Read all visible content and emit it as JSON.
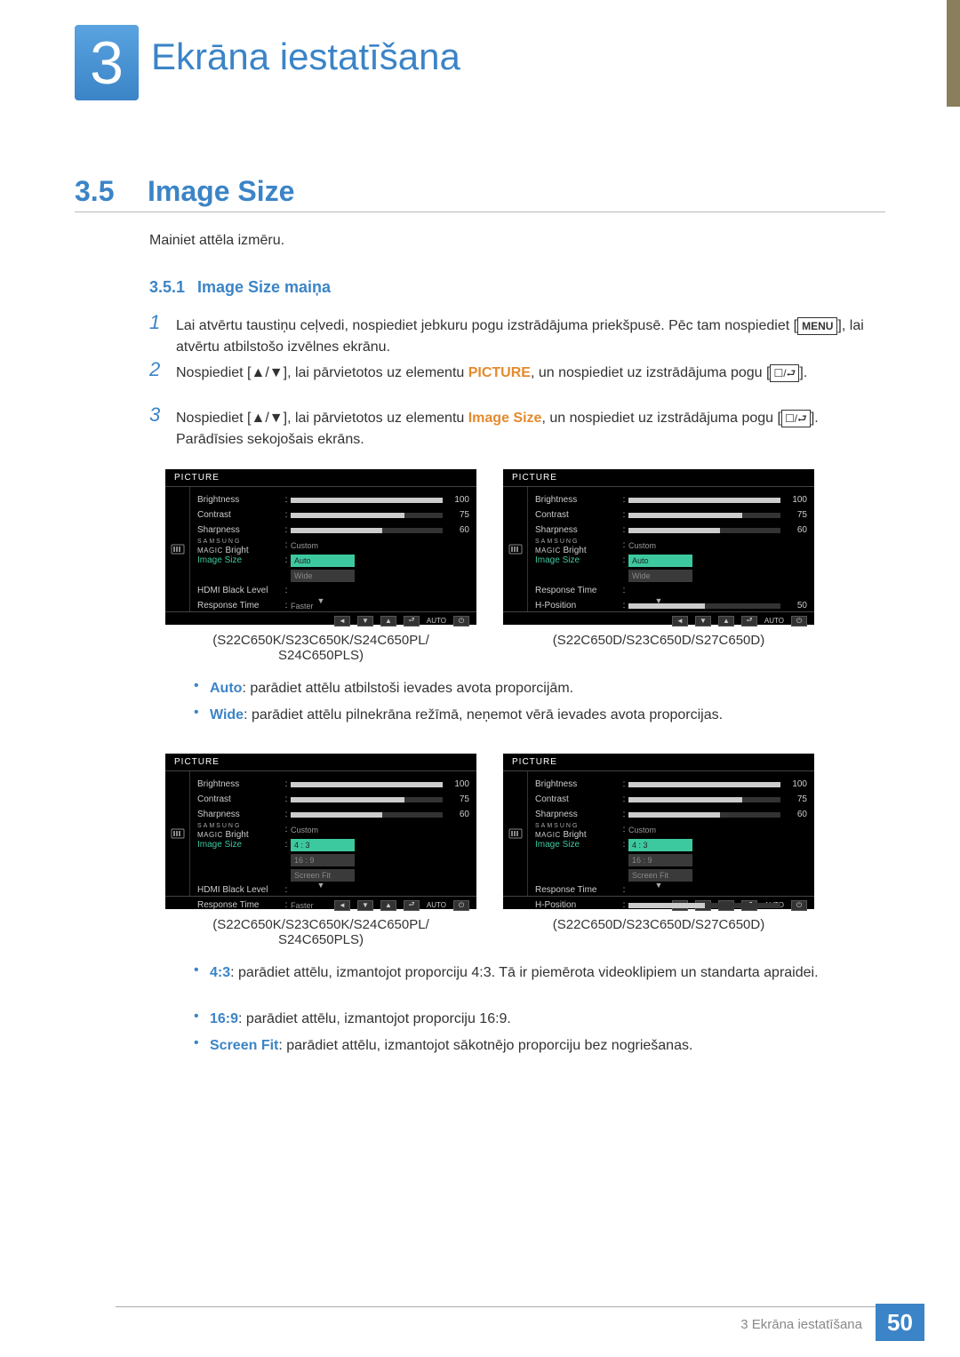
{
  "chapter": {
    "number": "3",
    "title": "Ekrāna iestatīšana"
  },
  "section": {
    "number": "3.5",
    "title": "Image Size",
    "intro": "Mainiet attēla izmēru."
  },
  "subsection": {
    "number": "3.5.1",
    "title": "Image Size maiņa"
  },
  "steps": {
    "s1": {
      "num": "1",
      "text_a": "Lai atvērtu taustiņu ceļvedi, nospiediet jebkuru pogu izstrādājuma priekšpusē. Pēc tam nospiediet [",
      "menu": "MENU",
      "text_b": "], lai atvērtu atbilstošo izvēlnes ekrānu."
    },
    "s2": {
      "num": "2",
      "text_a": "Nospiediet [",
      "arrows": "▲/▼",
      "text_b": "], lai pārvietotos uz elementu ",
      "hl": "PICTURE",
      "text_c": ", un nospiediet uz izstrādājuma pogu [",
      "icons": "☐/⮐",
      "text_d": "]."
    },
    "s3": {
      "num": "3",
      "text_a": "Nospiediet [",
      "arrows": "▲/▼",
      "text_b": "], lai pārvietotos uz elementu ",
      "hl": "Image Size",
      "text_c": ", un nospiediet uz izstrādājuma pogu [",
      "icons": "☐/⮐",
      "text_d": "]. Parādīsies sekojošais ekrāns."
    }
  },
  "osd_common": {
    "header": "PICTURE",
    "brightness": {
      "label": "Brightness",
      "value": 100,
      "pct": 100
    },
    "contrast": {
      "label": "Contrast",
      "value": 75,
      "pct": 75
    },
    "sharpness": {
      "label": "Sharpness",
      "value": 60,
      "pct": 60
    },
    "magic": {
      "top": "SAMSUNG",
      "bottom": "MAGIC",
      "suffix": "Bright",
      "value": "Custom"
    },
    "image_size": "Image Size",
    "hdmi_black": "HDMI Black Level",
    "response": {
      "label": "Response Time",
      "value": "Faster"
    },
    "hpos": {
      "label": "H-Position",
      "value": 50,
      "pct": 50
    },
    "footer_auto": "AUTO"
  },
  "osd_set1": {
    "opts": {
      "a": "Auto",
      "b": "Wide"
    }
  },
  "osd_set2": {
    "opts": {
      "a": "4 : 3",
      "b": "16 : 9",
      "c": "Screen Fit"
    }
  },
  "captions": {
    "left": "(S22C650K/S23C650K/S24C650PL/\nS24C650PLS)",
    "right": "(S22C650D/S23C650D/S27C650D)"
  },
  "bullets1": {
    "auto": {
      "label": "Auto",
      "text": ": parādiet attēlu atbilstoši ievades avota proporcijām."
    },
    "wide": {
      "label": "Wide",
      "text": ": parādiet attēlu pilnekrāna režīmā, neņemot vērā ievades avota proporcijas."
    }
  },
  "bullets2": {
    "r43": {
      "label": "4:3",
      "text": ": parādiet attēlu, izmantojot proporciju 4:3. Tā ir piemērota videoklipiem un standarta apraidei."
    },
    "r169": {
      "label": "16:9",
      "text": ": parādiet attēlu, izmantojot proporciju 16:9."
    },
    "fit": {
      "label": "Screen Fit",
      "text": ": parādiet attēlu, izmantojot sākotnējo proporciju bez nogriešanas."
    }
  },
  "footer": {
    "text": "3 Ekrāna iestatīšana",
    "page": "50"
  }
}
